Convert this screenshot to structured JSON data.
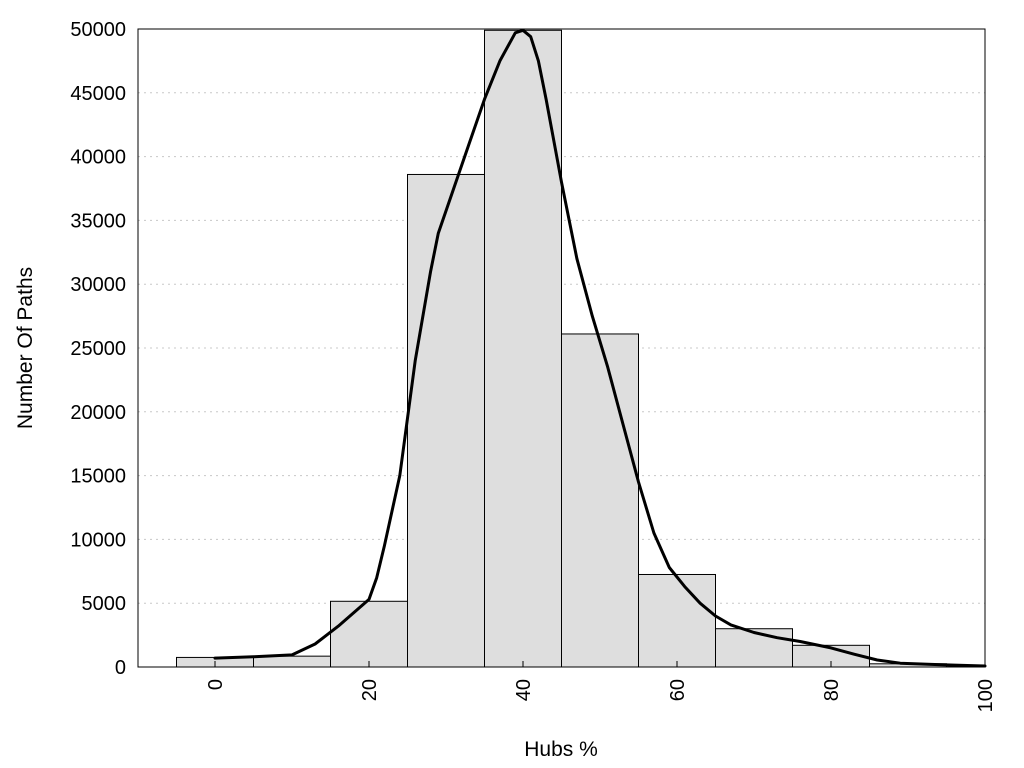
{
  "chart_data": {
    "type": "bar",
    "title": "",
    "xlabel": "Hubs %",
    "ylabel": "Number Of Paths",
    "xlim": [
      -10,
      100
    ],
    "ylim": [
      0,
      50000
    ],
    "x_ticks": [
      "0",
      "20",
      "40",
      "60",
      "80",
      "100"
    ],
    "y_ticks": [
      "0",
      "5000",
      "10000",
      "15000",
      "20000",
      "25000",
      "30000",
      "35000",
      "40000",
      "45000",
      "50000"
    ],
    "grid": "horizontal-dotted",
    "bin_width": 10,
    "bins": [
      {
        "center": 0,
        "value": 750
      },
      {
        "center": 10,
        "value": 850
      },
      {
        "center": 20,
        "value": 5150
      },
      {
        "center": 30,
        "value": 38600
      },
      {
        "center": 40,
        "value": 49900
      },
      {
        "center": 50,
        "value": 26100
      },
      {
        "center": 60,
        "value": 7250
      },
      {
        "center": 70,
        "value": 3000
      },
      {
        "center": 80,
        "value": 1700
      },
      {
        "center": 90,
        "value": 250
      },
      {
        "center": 100,
        "value": 100
      }
    ],
    "density_curve": [
      [
        0,
        700
      ],
      [
        5,
        800
      ],
      [
        10,
        950
      ],
      [
        13,
        1800
      ],
      [
        16,
        3200
      ],
      [
        20,
        5300
      ],
      [
        21,
        7000
      ],
      [
        22,
        9500
      ],
      [
        24,
        15000
      ],
      [
        26,
        24000
      ],
      [
        28,
        31000
      ],
      [
        29,
        34000
      ],
      [
        31,
        37500
      ],
      [
        33,
        41000
      ],
      [
        35,
        44500
      ],
      [
        37,
        47500
      ],
      [
        39,
        49700
      ],
      [
        40,
        49900
      ],
      [
        41,
        49400
      ],
      [
        42,
        47500
      ],
      [
        43,
        44500
      ],
      [
        45,
        38000
      ],
      [
        47,
        32000
      ],
      [
        49,
        27500
      ],
      [
        51,
        23500
      ],
      [
        53,
        19000
      ],
      [
        55,
        14500
      ],
      [
        57,
        10500
      ],
      [
        59,
        7800
      ],
      [
        61,
        6300
      ],
      [
        63,
        5000
      ],
      [
        65,
        4000
      ],
      [
        67,
        3300
      ],
      [
        70,
        2700
      ],
      [
        73,
        2300
      ],
      [
        76,
        2000
      ],
      [
        80,
        1500
      ],
      [
        83,
        1000
      ],
      [
        86,
        550
      ],
      [
        89,
        300
      ],
      [
        93,
        200
      ],
      [
        96,
        150
      ],
      [
        100,
        80
      ]
    ]
  }
}
